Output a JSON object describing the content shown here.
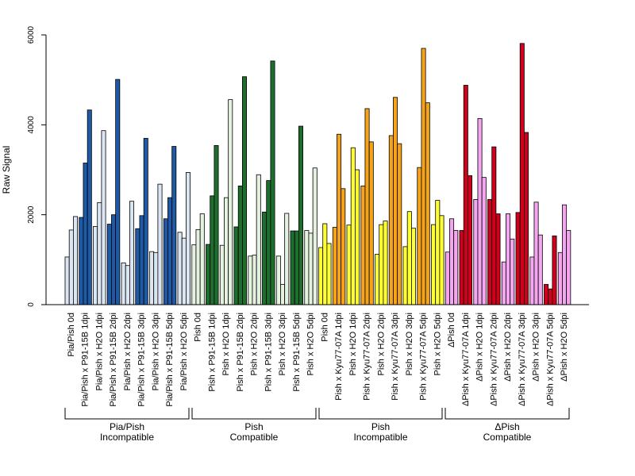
{
  "chart_data": {
    "type": "bar",
    "ylabel": "Raw Signal",
    "ylim": [
      0,
      6000
    ],
    "yticks": [
      0,
      2000,
      4000,
      6000
    ],
    "grid": false,
    "bars_per_category": 3,
    "categories": [
      "Pia/Pish 0d",
      "Pia/Pish x P91-15B 1dpi",
      "Pia/Pish x H2O 1dpi",
      "Pia/Pish x P91-15B 2dpi",
      "Pia/Pish x H2O 2dpi",
      "Pia/Pish x P91-15B 3dpi",
      "Pia/Pish x H2O 3dpi",
      "Pia/Pish x P91-15B 5dpi",
      "Pia/Pish x H2O 5dpi",
      "Pish 0d",
      "Pish x P91-15B 1dpi",
      "Pish x H2O 1dpi",
      "Pish x P91-15B 2dpi",
      "Pish x H2O 2dpi",
      "Pish x P91-15B 3dpi",
      "Pish x H2O 3dpi",
      "Pish x P91-15B 5dpi",
      "Pish x H2O 5dpi",
      "Pish 0d",
      "Pish x Kyu77-07A 1dpi",
      "Pish x H2O 1dpi",
      "Pish x Kyu77-07A 2dpi",
      "Pish x H2O 2dpi",
      "Pish x Kyu77-07A 3dpi",
      "Pish x H2O 3dpi",
      "Pish x Kyu77-07A 5dpi",
      "Pish x H2O 5dpi",
      "ΔPish 0d",
      "ΔPish x Kyu77-07A 1dpi",
      "ΔPish x H2O 1dpi",
      "ΔPish x Kyu77-07A 2dpi",
      "ΔPish x H2O 2dpi",
      "ΔPish x Kyu77-07A 3dpi",
      "ΔPish x H2O 3dpi",
      "ΔPish x Kyu77-07A 5dpi",
      "ΔPish x H2O 5dpi"
    ],
    "values": [
      [
        1060,
        1660,
        1960
      ],
      [
        1940,
        3150,
        4330
      ],
      [
        1740,
        2270,
        3870
      ],
      [
        1790,
        2000,
        5010
      ],
      [
        930,
        870,
        2300
      ],
      [
        1690,
        1980,
        3700
      ],
      [
        1180,
        1160,
        2680
      ],
      [
        1910,
        2380,
        3520
      ],
      [
        1610,
        1480,
        2940
      ],
      [
        1330,
        1670,
        2020
      ],
      [
        1340,
        2420,
        3540
      ],
      [
        1320,
        2380,
        4560
      ],
      [
        1730,
        2640,
        5070
      ],
      [
        1080,
        1100,
        2890
      ],
      [
        2060,
        2760,
        5420
      ],
      [
        1080,
        450,
        2030
      ],
      [
        1640,
        1640,
        3970
      ],
      [
        1650,
        1590,
        3040
      ],
      [
        1270,
        1800,
        1360
      ],
      [
        1720,
        3790,
        2580
      ],
      [
        1770,
        3490,
        3000
      ],
      [
        2640,
        4360,
        3620
      ],
      [
        1120,
        1780,
        1860
      ],
      [
        3760,
        4610,
        3580
      ],
      [
        1290,
        2070,
        1700
      ],
      [
        3050,
        5700,
        4490
      ],
      [
        1780,
        2320,
        1980
      ],
      [
        1170,
        1910,
        1650
      ],
      [
        1650,
        4880,
        2870
      ],
      [
        2340,
        4140,
        2830
      ],
      [
        2340,
        3510,
        2020
      ],
      [
        950,
        2020,
        1460
      ],
      [
        2050,
        5810,
        3830
      ],
      [
        1060,
        2280,
        1550
      ],
      [
        450,
        350,
        1530
      ],
      [
        1160,
        2220,
        1650
      ]
    ],
    "group_labels": [
      {
        "line1": "Pia/Pish",
        "line2": "Incompatible"
      },
      {
        "line1": "Pish",
        "line2": "Compatible"
      },
      {
        "line1": "Pish",
        "line2": "Incompatible"
      },
      {
        "line1": "ΔPish",
        "line2": "Compatible"
      }
    ],
    "colors": {
      "bar_stroke": "#000000",
      "groups": [
        {
          "light": "#dce6f2",
          "dark": "#1f5aa6"
        },
        {
          "light": "#e5f2e0",
          "dark": "#1e6e2e"
        },
        {
          "light": "#ffff33",
          "dark": "#f5a31a"
        },
        {
          "light": "#f5a6f0",
          "dark": "#d0021b"
        }
      ]
    }
  }
}
